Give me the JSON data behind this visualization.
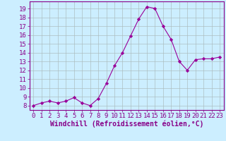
{
  "x": [
    0,
    1,
    2,
    3,
    4,
    5,
    6,
    7,
    8,
    9,
    10,
    11,
    12,
    13,
    14,
    15,
    16,
    17,
    18,
    19,
    20,
    21,
    22,
    23
  ],
  "y": [
    8.0,
    8.3,
    8.5,
    8.3,
    8.5,
    8.9,
    8.3,
    8.0,
    8.8,
    10.5,
    12.5,
    14.0,
    15.9,
    17.8,
    19.2,
    19.0,
    17.0,
    15.5,
    13.0,
    12.0,
    13.2,
    13.3,
    13.3,
    13.5
  ],
  "line_color": "#990099",
  "marker": "D",
  "marker_size": 2.2,
  "bg_color": "#cceeff",
  "grid_color": "#aabbbb",
  "xlabel": "Windchill (Refroidissement éolien,°C)",
  "ylim": [
    7.5,
    19.8
  ],
  "yticks": [
    8,
    9,
    10,
    11,
    12,
    13,
    14,
    15,
    16,
    17,
    18,
    19
  ],
  "ytick_labels": [
    "8",
    "9",
    "10",
    "11",
    "12",
    "13",
    "14",
    "15",
    "16",
    "17",
    "18",
    "19"
  ],
  "xlim": [
    -0.5,
    23.5
  ],
  "xticks": [
    0,
    1,
    2,
    3,
    4,
    5,
    6,
    7,
    8,
    9,
    10,
    11,
    12,
    13,
    14,
    15,
    16,
    17,
    18,
    19,
    20,
    21,
    22,
    23
  ],
  "xlabel_fontsize": 7.0,
  "tick_fontsize": 6.5,
  "label_color": "#880088"
}
